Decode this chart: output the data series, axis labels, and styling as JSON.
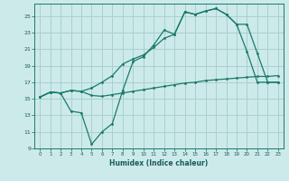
{
  "xlabel": "Humidex (Indice chaleur)",
  "bg_color": "#cceaea",
  "grid_color": "#aacfcf",
  "line_color": "#1a7a6a",
  "xlim": [
    -0.5,
    23.5
  ],
  "ylim": [
    9,
    26.5
  ],
  "xticks": [
    0,
    1,
    2,
    3,
    4,
    5,
    6,
    7,
    8,
    9,
    10,
    11,
    12,
    13,
    14,
    15,
    16,
    17,
    18,
    19,
    20,
    21,
    22,
    23
  ],
  "yticks": [
    9,
    11,
    13,
    15,
    17,
    19,
    21,
    23,
    25
  ],
  "line1_x": [
    0,
    1,
    2,
    3,
    4,
    5,
    6,
    7,
    8,
    9,
    10,
    11,
    12,
    13,
    14,
    15,
    16,
    17,
    18,
    19,
    20,
    21,
    22,
    23
  ],
  "line1_y": [
    15.2,
    15.8,
    15.7,
    16.0,
    15.9,
    15.4,
    15.3,
    15.5,
    15.7,
    15.9,
    16.1,
    16.3,
    16.5,
    16.7,
    16.9,
    17.0,
    17.2,
    17.3,
    17.4,
    17.5,
    17.6,
    17.7,
    17.7,
    17.8
  ],
  "line2_x": [
    0,
    1,
    2,
    3,
    4,
    5,
    6,
    7,
    8,
    9,
    10,
    11,
    12,
    13,
    14,
    15,
    16,
    17,
    18,
    19,
    20,
    21,
    22,
    23
  ],
  "line2_y": [
    15.2,
    15.8,
    15.7,
    16.0,
    15.9,
    16.3,
    17.0,
    17.8,
    19.2,
    19.8,
    20.3,
    21.2,
    22.3,
    22.8,
    25.5,
    25.2,
    25.6,
    25.9,
    25.2,
    24.0,
    24.0,
    20.5,
    17.0,
    17.0
  ],
  "line3_x": [
    0,
    1,
    2,
    3,
    4,
    5,
    6,
    7,
    8,
    9,
    10,
    11,
    12,
    13,
    14,
    15,
    16,
    17,
    18,
    19,
    20,
    21,
    22,
    23
  ],
  "line3_y": [
    15.2,
    15.8,
    15.7,
    13.5,
    13.3,
    9.5,
    11.0,
    12.0,
    16.0,
    19.5,
    20.1,
    21.5,
    23.3,
    22.8,
    25.5,
    25.2,
    25.6,
    25.9,
    25.2,
    24.0,
    20.7,
    17.0,
    17.0,
    17.0
  ]
}
